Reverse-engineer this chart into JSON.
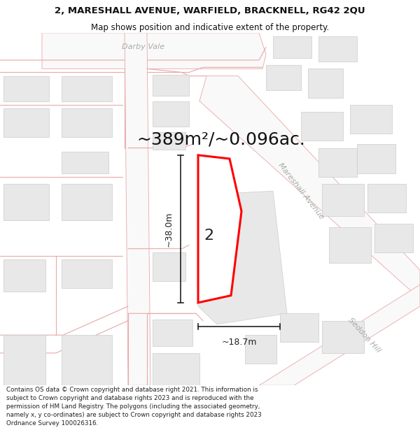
{
  "title_line1": "2, MARESHALL AVENUE, WARFIELD, BRACKNELL, RG42 2QU",
  "title_line2": "Map shows position and indicative extent of the property.",
  "area_text": "~389m²/~0.096ac.",
  "dim_height": "~38.0m",
  "dim_width": "~18.7m",
  "plot_number": "2",
  "footer_text": "Contains OS data © Crown copyright and database right 2021. This information is subject to Crown copyright and database rights 2023 and is reproduced with the permission of HM Land Registry. The polygons (including the associated geometry, namely x, y co-ordinates) are subject to Crown copyright and database rights 2023 Ordnance Survey 100026316.",
  "bg_color": "#ffffff",
  "map_bg": "#ffffff",
  "road_line_color": "#e8a8a8",
  "building_fill": "#e8e8e8",
  "building_stroke": "#cccccc",
  "plot_fill": "#ffffff",
  "plot_stroke": "#ff0000",
  "dim_color": "#222222",
  "street_label_color": "#aaaaaa",
  "title_color": "#111111",
  "footer_color": "#222222",
  "title_fontsize": 9.5,
  "subtitle_fontsize": 8.5,
  "area_fontsize": 18,
  "plot_label_fontsize": 16,
  "dim_fontsize": 9,
  "street_fontsize": 8
}
